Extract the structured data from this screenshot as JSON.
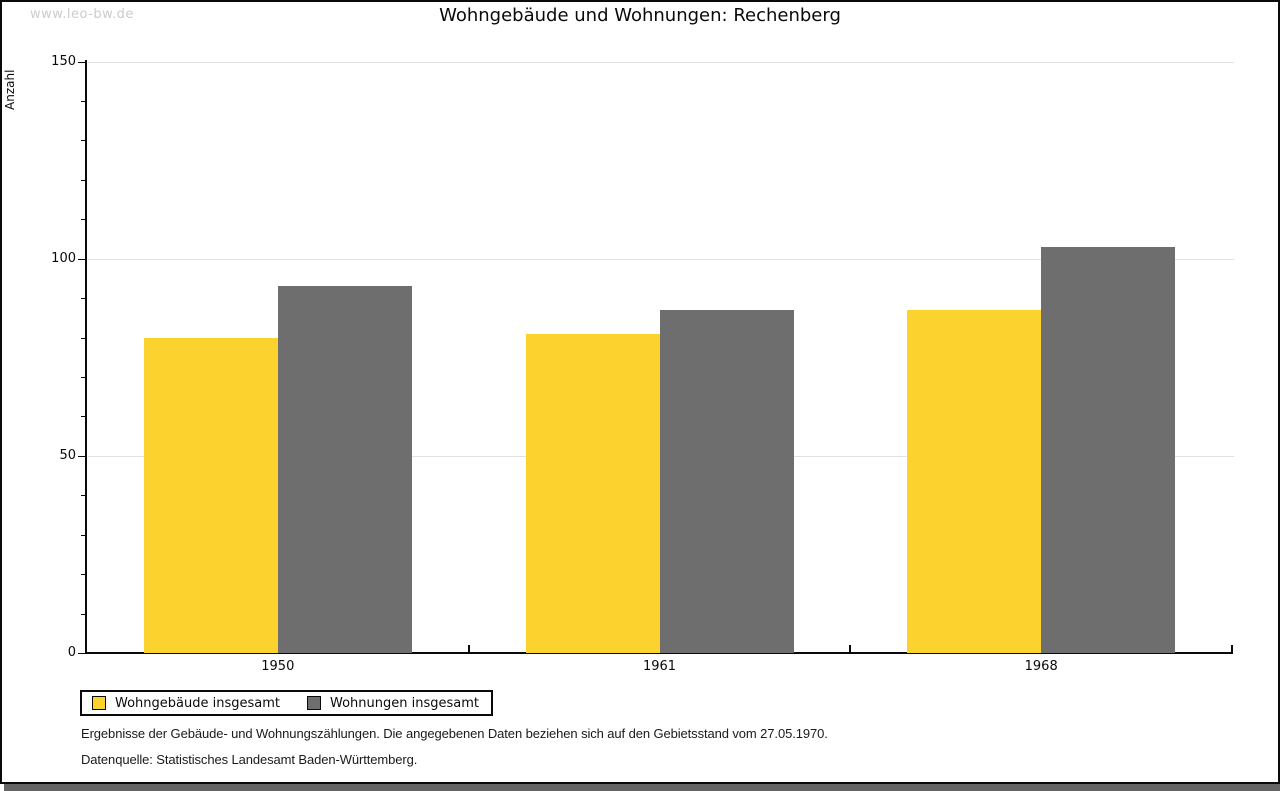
{
  "watermark": "www.leo-bw.de",
  "title": "Wohngebäude und Wohnungen: Rechenberg",
  "chart_data": {
    "type": "bar",
    "title": "Wohngebäude und Wohnungen: Rechenberg",
    "categories": [
      "1950",
      "1961",
      "1968"
    ],
    "series": [
      {
        "name": "Wohngebäude insgesamt",
        "color": "#FCD32E",
        "values": [
          80,
          81,
          87
        ]
      },
      {
        "name": "Wohnungen insgesamt",
        "color": "#6E6E6E",
        "values": [
          93,
          87,
          103
        ]
      }
    ],
    "xlabel": "",
    "ylabel": "Anzahl",
    "ylim": [
      0,
      150
    ],
    "ytick_step": 50,
    "yminor_step": 10,
    "ytick_labels": [
      "0",
      "50",
      "100",
      "150"
    ],
    "grid": "horizontal gridlines at 50, 100, 150",
    "gridline_values": [
      50,
      100,
      150
    ],
    "legend_position": "bottom-left, boxed"
  },
  "footnotes": {
    "line1": "Ergebnisse der Gebäude- und Wohnungszählungen. Die angegebenen Daten beziehen sich auf den Gebietsstand vom 27.05.1970.",
    "line2": "Datenquelle: Statistisches Landesamt Baden-Württemberg."
  },
  "colors": {
    "bar_yellow": "#FCD32E",
    "bar_gray": "#6E6E6E",
    "gridline": "#e1e1e1",
    "watermark": "#cccccc",
    "frame": "#0a0a0a",
    "bottom_strip": "#646464"
  }
}
